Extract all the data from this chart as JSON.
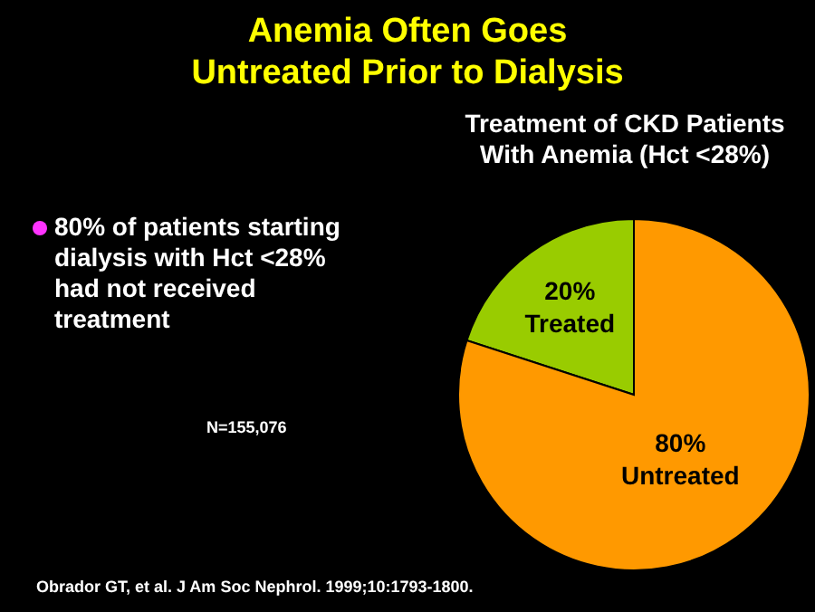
{
  "chart_data": {
    "type": "pie",
    "title": "Anemia Often Goes Untreated Prior to Dialysis",
    "subtitle": "Treatment of CKD Patients With Anemia (Hct <28%)",
    "categories": [
      "Treated",
      "Untreated"
    ],
    "values": [
      20,
      80
    ],
    "colors": [
      "#99cc00",
      "#ff9900"
    ],
    "value_labels": [
      "20%",
      "80%"
    ],
    "legend": false,
    "annotations": [
      "80% of patients starting dialysis with Hct <28% had not received treatment",
      "N=155,076",
      "Obrador GT, et al. J Am Soc Nephrol. 1999;10:1793-1800."
    ]
  }
}
